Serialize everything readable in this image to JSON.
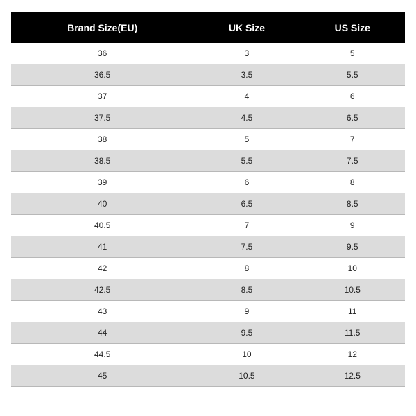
{
  "size_chart": {
    "type": "table",
    "header_bg": "#000000",
    "header_text_color": "#ffffff",
    "row_odd_bg": "#ffffff",
    "row_even_bg": "#dcdcdc",
    "border_color": "#b8b8b8",
    "text_color": "#222222",
    "header_fontsize": 14,
    "cell_fontsize": 12,
    "columns": [
      "Brand Size(EU)",
      "UK Size",
      "US Size"
    ],
    "rows": [
      [
        "36",
        "3",
        "5"
      ],
      [
        "36.5",
        "3.5",
        "5.5"
      ],
      [
        "37",
        "4",
        "6"
      ],
      [
        "37.5",
        "4.5",
        "6.5"
      ],
      [
        "38",
        "5",
        "7"
      ],
      [
        "38.5",
        "5.5",
        "7.5"
      ],
      [
        "39",
        "6",
        "8"
      ],
      [
        "40",
        "6.5",
        "8.5"
      ],
      [
        "40.5",
        "7",
        "9"
      ],
      [
        "41",
        "7.5",
        "9.5"
      ],
      [
        "42",
        "8",
        "10"
      ],
      [
        "42.5",
        "8.5",
        "10.5"
      ],
      [
        "43",
        "9",
        "11"
      ],
      [
        "44",
        "9.5",
        "11.5"
      ],
      [
        "44.5",
        "10",
        "12"
      ],
      [
        "45",
        "10.5",
        "12.5"
      ]
    ]
  }
}
